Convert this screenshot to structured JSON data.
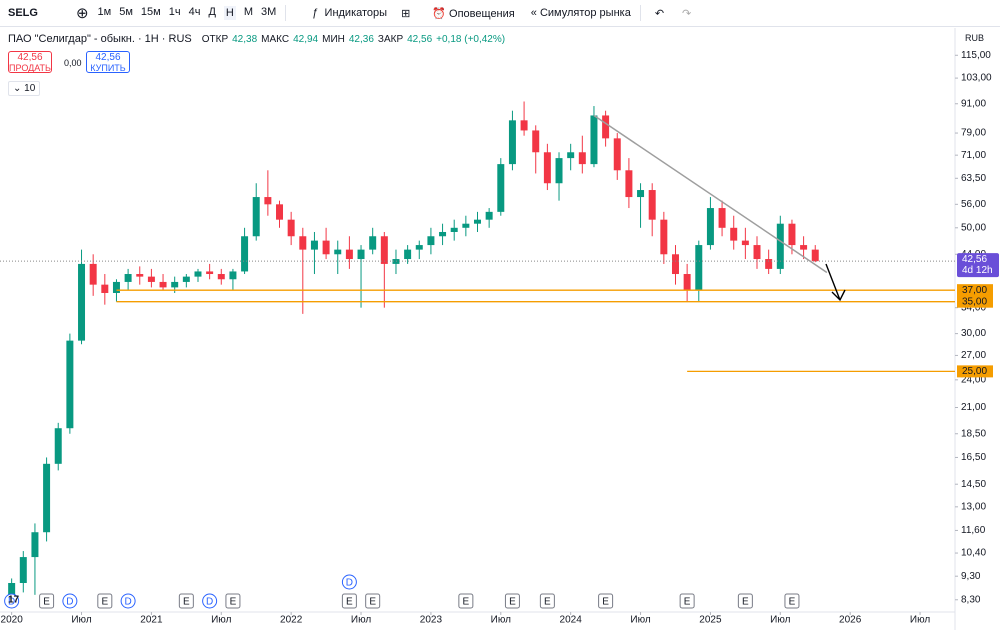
{
  "toolbar": {
    "symbol": "SELG",
    "timeframes": [
      "1м",
      "5м",
      "15м",
      "1ч",
      "4ч",
      "Д",
      "Н",
      "М",
      "3М"
    ],
    "active_timeframe": "Н",
    "indicators": "Индикаторы",
    "alerts": "Оповещения",
    "simulator": "Симулятор рынка"
  },
  "legend": {
    "title": "ПАО \"Селигдар\" - обыкн. · 1Н · RUS",
    "open_label": "ОТКР",
    "open": "42,38",
    "high_label": "МАКС",
    "high": "42,94",
    "low_label": "МИН",
    "low": "42,36",
    "close_label": "ЗАКР",
    "close": "42,56",
    "change": "+0,18 (+0,42%)",
    "sell_price": "42,56",
    "sell": "ПРОДАТЬ",
    "spread": "0,00",
    "buy_price": "42,56",
    "buy": "КУПИТЬ",
    "indicator_count": "10",
    "currency": "RUB"
  },
  "chart_data": {
    "type": "candlestick",
    "log_scale": true,
    "grid": false,
    "up_color": "#089981",
    "down_color": "#f23645",
    "x": [
      "2020-01",
      "2020-02",
      "2020-03",
      "2020-04",
      "2020-05",
      "2020-06",
      "2020-07",
      "2020-08",
      "2020-09",
      "2020-10",
      "2020-11",
      "2020-12",
      "2021-01",
      "2021-02",
      "2021-03",
      "2021-04",
      "2021-05",
      "2021-06",
      "2021-07",
      "2021-08",
      "2021-09",
      "2021-10",
      "2021-11",
      "2021-12",
      "2022-01",
      "2022-02",
      "2022-03",
      "2022-04",
      "2022-05",
      "2022-06",
      "2022-07",
      "2022-08",
      "2022-09",
      "2022-10",
      "2022-11",
      "2022-12",
      "2023-01",
      "2023-02",
      "2023-03",
      "2023-04",
      "2023-05",
      "2023-06",
      "2023-07",
      "2023-08",
      "2023-09",
      "2023-10",
      "2023-11",
      "2023-12",
      "2024-01",
      "2024-02",
      "2024-03",
      "2024-04",
      "2024-05",
      "2024-06",
      "2024-07",
      "2024-08",
      "2024-09",
      "2024-10",
      "2024-11",
      "2024-12",
      "2025-01",
      "2025-02",
      "2025-03",
      "2025-04",
      "2025-05",
      "2025-06",
      "2025-07",
      "2025-08",
      "2025-09",
      "2025-10"
    ],
    "open": [
      8.5,
      9,
      10.2,
      11.5,
      16,
      19,
      29,
      42,
      38,
      36.5,
      38.5,
      40,
      39.5,
      38.5,
      37.5,
      38.5,
      39.5,
      40.5,
      40,
      39,
      40.5,
      48,
      58,
      56,
      52,
      48,
      45,
      47,
      44,
      45,
      43,
      45,
      48,
      42,
      43,
      45,
      46,
      48,
      49,
      50,
      51,
      52,
      54,
      68,
      84,
      80,
      72,
      62,
      70,
      72,
      68,
      86,
      77,
      66,
      58,
      60,
      52,
      44,
      40,
      37,
      46,
      55,
      50,
      47,
      46,
      43,
      41,
      51,
      46,
      45
    ],
    "high": [
      9.2,
      10.5,
      12,
      16.5,
      19.5,
      30,
      45,
      44,
      40,
      39,
      41,
      41.5,
      41,
      40,
      39.5,
      40,
      41,
      42,
      41,
      41,
      50,
      62,
      66,
      57,
      54,
      50,
      49,
      50,
      47,
      48,
      46,
      50,
      49,
      45,
      46,
      47,
      50,
      51,
      52,
      53,
      54,
      55,
      70,
      88,
      92,
      82,
      75,
      72,
      75,
      78,
      90,
      88,
      79,
      70,
      62,
      62,
      54,
      46,
      42,
      47,
      58,
      57,
      53,
      50,
      48,
      45,
      53,
      52,
      48,
      46
    ],
    "low": [
      8,
      8.6,
      8.5,
      11,
      15.5,
      18.5,
      28.5,
      36,
      34.5,
      35,
      37,
      38,
      37.5,
      37,
      36.5,
      37.5,
      38.5,
      39,
      38,
      37,
      40,
      47,
      53,
      50,
      46,
      33,
      40,
      43,
      40,
      41,
      34,
      44,
      34,
      40,
      42,
      43,
      44,
      46,
      47,
      48,
      49,
      50,
      53,
      66,
      78,
      65,
      60,
      57,
      66,
      65,
      67,
      74,
      63,
      55,
      50,
      48,
      42,
      38,
      35,
      35,
      45,
      48,
      45,
      43,
      41,
      40,
      40,
      44,
      43,
      42.36
    ],
    "close": [
      9,
      10.2,
      11.5,
      16,
      19,
      29,
      42,
      38,
      36.5,
      38.5,
      40,
      39.5,
      38.5,
      37.5,
      38.5,
      39.5,
      40.5,
      40,
      39,
      40.5,
      48,
      58,
      56,
      52,
      48,
      45,
      47,
      44,
      45,
      43,
      45,
      48,
      42,
      43,
      45,
      46,
      48,
      49,
      50,
      51,
      52,
      54,
      68,
      84,
      80,
      72,
      62,
      70,
      72,
      68,
      86,
      77,
      66,
      58,
      60,
      52,
      44,
      40,
      37,
      46,
      55,
      50,
      47,
      46,
      43,
      41,
      51,
      46,
      45,
      42.56
    ],
    "xlim": [
      "2019-12",
      "2026-10"
    ],
    "xticks": [
      {
        "value": "2020-01",
        "label": "2020"
      },
      {
        "value": "2020-07",
        "label": "Июл"
      },
      {
        "value": "2021-01",
        "label": "2021"
      },
      {
        "value": "2021-07",
        "label": "Июл"
      },
      {
        "value": "2022-01",
        "label": "2022"
      },
      {
        "value": "2022-07",
        "label": "Июл"
      },
      {
        "value": "2023-01",
        "label": "2023"
      },
      {
        "value": "2023-07",
        "label": "Июл"
      },
      {
        "value": "2024-01",
        "label": "2024"
      },
      {
        "value": "2024-07",
        "label": "Июл"
      },
      {
        "value": "2025-01",
        "label": "2025"
      },
      {
        "value": "2025-07",
        "label": "Июл"
      },
      {
        "value": "2026-01",
        "label": "2026"
      },
      {
        "value": "2026-07",
        "label": "Июл"
      }
    ],
    "ylim": [
      7.9,
      125
    ],
    "yticks": [
      {
        "value": 115,
        "label": "115,00"
      },
      {
        "value": 103,
        "label": "103,00"
      },
      {
        "value": 91,
        "label": "91,00"
      },
      {
        "value": 79,
        "label": "79,00"
      },
      {
        "value": 71,
        "label": "71,00"
      },
      {
        "value": 63.5,
        "label": "63,50"
      },
      {
        "value": 56,
        "label": "56,00"
      },
      {
        "value": 50,
        "label": "50,00"
      },
      {
        "value": 44,
        "label": "44,00"
      },
      {
        "value": 34,
        "label": "34,00"
      },
      {
        "value": 30,
        "label": "30,00"
      },
      {
        "value": 27,
        "label": "27,00"
      },
      {
        "value": 24,
        "label": "24,00"
      },
      {
        "value": 21,
        "label": "21,00"
      },
      {
        "value": 18.5,
        "label": "18,50"
      },
      {
        "value": 16.5,
        "label": "16,50"
      },
      {
        "value": 14.5,
        "label": "14,50"
      },
      {
        "value": 13,
        "label": "13,00"
      },
      {
        "value": 11.6,
        "label": "11,60"
      },
      {
        "value": 10.4,
        "label": "10,40"
      },
      {
        "value": 9.3,
        "label": "9,30"
      },
      {
        "value": 8.3,
        "label": "8,30"
      }
    ],
    "last_price": {
      "value": 42.56,
      "label": "42,56"
    },
    "countdown": "4d 12h",
    "last_color": "#6a4fd8",
    "levels": [
      {
        "value": 37,
        "label": "37,00",
        "from": "2020-10"
      },
      {
        "value": 35,
        "label": "35,00",
        "from": "2020-10"
      },
      {
        "value": 25,
        "label": "25,00",
        "from": "2024-11"
      }
    ],
    "level_color": "#f59d00",
    "trendline": {
      "from": "2024-03",
      "from_value": 86,
      "to": "2025-11",
      "to_value": 40.3,
      "color": "#9e9e9e"
    },
    "events": [
      {
        "type": "D",
        "date": "2020-01"
      },
      {
        "type": "E",
        "date": "2020-04"
      },
      {
        "type": "D",
        "date": "2020-06"
      },
      {
        "type": "E",
        "date": "2020-09"
      },
      {
        "type": "D",
        "date": "2020-11"
      },
      {
        "type": "E",
        "date": "2021-04"
      },
      {
        "type": "D",
        "date": "2021-06"
      },
      {
        "type": "E",
        "date": "2021-08"
      },
      {
        "type": "E",
        "date": "2022-06"
      },
      {
        "type": "D",
        "date": "2022-06"
      },
      {
        "type": "E",
        "date": "2022-08"
      },
      {
        "type": "E",
        "date": "2023-04"
      },
      {
        "type": "E",
        "date": "2023-08"
      },
      {
        "type": "E",
        "date": "2023-11"
      },
      {
        "type": "E",
        "date": "2024-04"
      },
      {
        "type": "E",
        "date": "2024-11"
      },
      {
        "type": "E",
        "date": "2025-04"
      },
      {
        "type": "E",
        "date": "2025-08"
      }
    ]
  }
}
